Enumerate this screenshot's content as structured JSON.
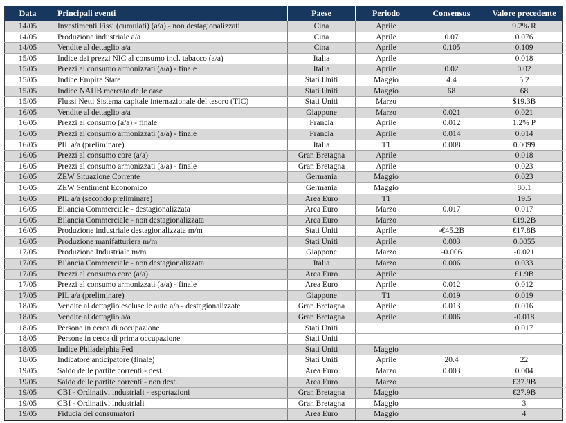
{
  "page": {
    "background": "#ffffff"
  },
  "colors": {
    "header_bg": "#17375e",
    "header_text": "#ffffff",
    "row_gray": "#d9d9d9",
    "row_white": "#ffffff",
    "grid_line": "#a8a8a8",
    "column_line": "#808080",
    "group_line": "#2f2f2f",
    "text": "#1a1a1a"
  },
  "table": {
    "columns": [
      {
        "key": "date",
        "label": "Data"
      },
      {
        "key": "event",
        "label": "Principali eventi"
      },
      {
        "key": "country",
        "label": "Paese"
      },
      {
        "key": "period",
        "label": "Periodo"
      },
      {
        "key": "consensus",
        "label": "Consensus"
      },
      {
        "key": "previous",
        "label": "Valore precedente"
      }
    ],
    "rows": [
      {
        "date": "14/05",
        "event": "Investimenti Fissi (cumulati) (a/a) - non destagionalizzati",
        "country": "Cina",
        "period": "Aprile",
        "consensus": "",
        "previous": "9.2% R",
        "shade": "gray",
        "group_start": false
      },
      {
        "date": "14/05",
        "event": "Produzione industriale a/a",
        "country": "Cina",
        "period": "Aprile",
        "consensus": "0.07",
        "previous": "0.076",
        "shade": "white",
        "group_start": false
      },
      {
        "date": "14/05",
        "event": "Vendite al dettaglio a/a",
        "country": "Cina",
        "period": "Aprile",
        "consensus": "0.105",
        "previous": "0.109",
        "shade": "gray",
        "group_start": false
      },
      {
        "date": "15/05",
        "event": "Indice dei prezzi NIC al consumo incl. tabacco (a/a)",
        "country": "Italia",
        "period": "Aprile",
        "consensus": "",
        "previous": "0.018",
        "shade": "white",
        "group_start": true
      },
      {
        "date": "15/05",
        "event": "Prezzi al consumo armonizzati (a/a) - finale",
        "country": "Italia",
        "period": "Aprile",
        "consensus": "0.02",
        "previous": "0.02",
        "shade": "gray",
        "group_start": false
      },
      {
        "date": "15/05",
        "event": "Indice Empire State",
        "country": "Stati Uniti",
        "period": "Maggio",
        "consensus": "4.4",
        "previous": "5.2",
        "shade": "white",
        "group_start": false
      },
      {
        "date": "15/05",
        "event": "Indice NAHB mercato delle case",
        "country": "Stati Uniti",
        "period": "Maggio",
        "consensus": "68",
        "previous": "68",
        "shade": "gray",
        "group_start": false
      },
      {
        "date": "15/05",
        "event": "Flussi Netti Sistema capitale internazionale del tesoro (TIC)",
        "country": "Stati Uniti",
        "period": "Marzo",
        "consensus": "",
        "previous": "$19.3B",
        "shade": "white",
        "group_start": false
      },
      {
        "date": "16/05",
        "event": "Vendite al dettaglio a/a",
        "country": "Giappone",
        "period": "Marzo",
        "consensus": "0.021",
        "previous": "0.021",
        "shade": "gray",
        "group_start": true
      },
      {
        "date": "16/05",
        "event": "Prezzi al consumo (a/a) - finale",
        "country": "Francia",
        "period": "Aprile",
        "consensus": "0.012",
        "previous": "1.2% P",
        "shade": "white",
        "group_start": false
      },
      {
        "date": "16/05",
        "event": "Prezzi al consumo armonizzati (a/a) - finale",
        "country": "Francia",
        "period": "Aprile",
        "consensus": "0.014",
        "previous": "0.014",
        "shade": "gray",
        "group_start": false
      },
      {
        "date": "16/05",
        "event": "PIL a/a (preliminare)",
        "country": "Italia",
        "period": "T1",
        "consensus": "0.008",
        "previous": "0.0099",
        "shade": "white",
        "group_start": false
      },
      {
        "date": "16/05",
        "event": "Prezzi al consumo core (a/a)",
        "country": "Gran Bretagna",
        "period": "Aprile",
        "consensus": "",
        "previous": "0.018",
        "shade": "gray",
        "group_start": false
      },
      {
        "date": "16/05",
        "event": "Prezzi al consumo armonizzati (a/a) - finale",
        "country": "Gran Bretagna",
        "period": "Aprile",
        "consensus": "",
        "previous": "0.023",
        "shade": "white",
        "group_start": false
      },
      {
        "date": "16/05",
        "event": "ZEW Situazione Corrente",
        "country": "Germania",
        "period": "Maggio",
        "consensus": "",
        "previous": "0.023",
        "shade": "gray",
        "group_start": false
      },
      {
        "date": "16/05",
        "event": "ZEW Sentiment Economico",
        "country": "Germania",
        "period": "Maggio",
        "consensus": "",
        "previous": "80.1",
        "shade": "white",
        "group_start": false
      },
      {
        "date": "16/05",
        "event": "PIL a/a (secondo preliminare)",
        "country": "Area Euro",
        "period": "T1",
        "consensus": "",
        "previous": "19.5",
        "shade": "gray",
        "group_start": false
      },
      {
        "date": "16/05",
        "event": "Bilancia Commerciale - destagionalizzata",
        "country": "Area Euro",
        "period": "Marzo",
        "consensus": "0.017",
        "previous": "0.017",
        "shade": "white",
        "group_start": false
      },
      {
        "date": "16/05",
        "event": "Bilancia Commerciale - non destagionalizzata",
        "country": "Area Euro",
        "period": "Marzo",
        "consensus": "",
        "previous": "€19.2B",
        "shade": "gray",
        "group_start": false
      },
      {
        "date": "16/05",
        "event": "Produzione industriale destagionalizzata m/m",
        "country": "Stati Uniti",
        "period": "Aprile",
        "consensus": "-€45.2B",
        "previous": "€17.8B",
        "shade": "white",
        "group_start": false
      },
      {
        "date": "16/05",
        "event": "Produzione manifatturiera m/m",
        "country": "Stati Uniti",
        "period": "Aprile",
        "consensus": "0.003",
        "previous": "0.0055",
        "shade": "gray",
        "group_start": false
      },
      {
        "date": "17/05",
        "event": "Produzione Industriale m/m",
        "country": "Giappone",
        "period": "Marzo",
        "consensus": "-0.006",
        "previous": "-0.021",
        "shade": "white",
        "group_start": true
      },
      {
        "date": "17/05",
        "event": "Bilancia Commerciale - non destagionalizzata",
        "country": "Italia",
        "period": "Marzo",
        "consensus": "0.006",
        "previous": "0.033",
        "shade": "gray",
        "group_start": false
      },
      {
        "date": "17/05",
        "event": "Prezzi al consumo core (a/a)",
        "country": "Area Euro",
        "period": "Aprile",
        "consensus": "",
        "previous": "€1.9B",
        "shade": "gray",
        "group_start": false
      },
      {
        "date": "17/05",
        "event": "Prezzi al consumo armonizzati (a/a) - finale",
        "country": "Area Euro",
        "period": "Aprile",
        "consensus": "0.012",
        "previous": "0.012",
        "shade": "white",
        "group_start": false
      },
      {
        "date": "17/05",
        "event": "PIL a/a (preliminare)",
        "country": "Giappone",
        "period": "T1",
        "consensus": "0.019",
        "previous": "0.019",
        "shade": "gray",
        "group_start": false
      },
      {
        "date": "18/05",
        "event": "Vendite al dettaglio escluse le auto a/a  - destagionalizzate",
        "country": "Gran Bretagna",
        "period": "Aprile",
        "consensus": "0.013",
        "previous": "0.016",
        "shade": "white",
        "group_start": true
      },
      {
        "date": "18/05",
        "event": "Vendite al dettaglio a/a",
        "country": "Gran Bretagna",
        "period": "Aprile",
        "consensus": "0.006",
        "previous": "-0.018",
        "shade": "gray",
        "group_start": false
      },
      {
        "date": "18/05",
        "event": "Persone in cerca di occupazione",
        "country": "Stati Uniti",
        "period": "",
        "consensus": "",
        "previous": "0.017",
        "shade": "white",
        "group_start": false
      },
      {
        "date": "18/05",
        "event": "Persone in cerca di prima occupazione",
        "country": "Stati Uniti",
        "period": "",
        "consensus": "",
        "previous": "",
        "shade": "white",
        "group_start": false
      },
      {
        "date": "18/05",
        "event": "Indice Philadelphia Fed",
        "country": "Stati Uniti",
        "period": "Maggio",
        "consensus": "",
        "previous": "",
        "shade": "gray",
        "group_start": false
      },
      {
        "date": "18/05",
        "event": "Indicatore anticipatore (finale)",
        "country": "Stati Uniti",
        "period": "Aprile",
        "consensus": "20.4",
        "previous": "22",
        "shade": "white",
        "group_start": false
      },
      {
        "date": "19/05",
        "event": "Saldo delle partite correnti - dest.",
        "country": "Area Euro",
        "period": "Marzo",
        "consensus": "0.003",
        "previous": "0.004",
        "shade": "white",
        "group_start": true
      },
      {
        "date": "19/05",
        "event": "Saldo delle partite correnti -  non dest.",
        "country": "Area Euro",
        "period": "Marzo",
        "consensus": "",
        "previous": "€37.9B",
        "shade": "gray",
        "group_start": false
      },
      {
        "date": "19/05",
        "event": "CBI - Ordinativi industriali - esportazioni",
        "country": "Gran Bretagna",
        "period": "Maggio",
        "consensus": "",
        "previous": "€27.9B",
        "shade": "gray",
        "group_start": false
      },
      {
        "date": "19/05",
        "event": "CBI - Ordinativi industriali",
        "country": "Gran Bretagna",
        "period": "Maggio",
        "consensus": "",
        "previous": "3",
        "shade": "white",
        "group_start": false
      },
      {
        "date": "19/05",
        "event": "Fiducia dei consumatori",
        "country": "Area Euro",
        "period": "Maggio",
        "consensus": "",
        "previous": "4",
        "shade": "gray",
        "group_start": false
      }
    ]
  }
}
